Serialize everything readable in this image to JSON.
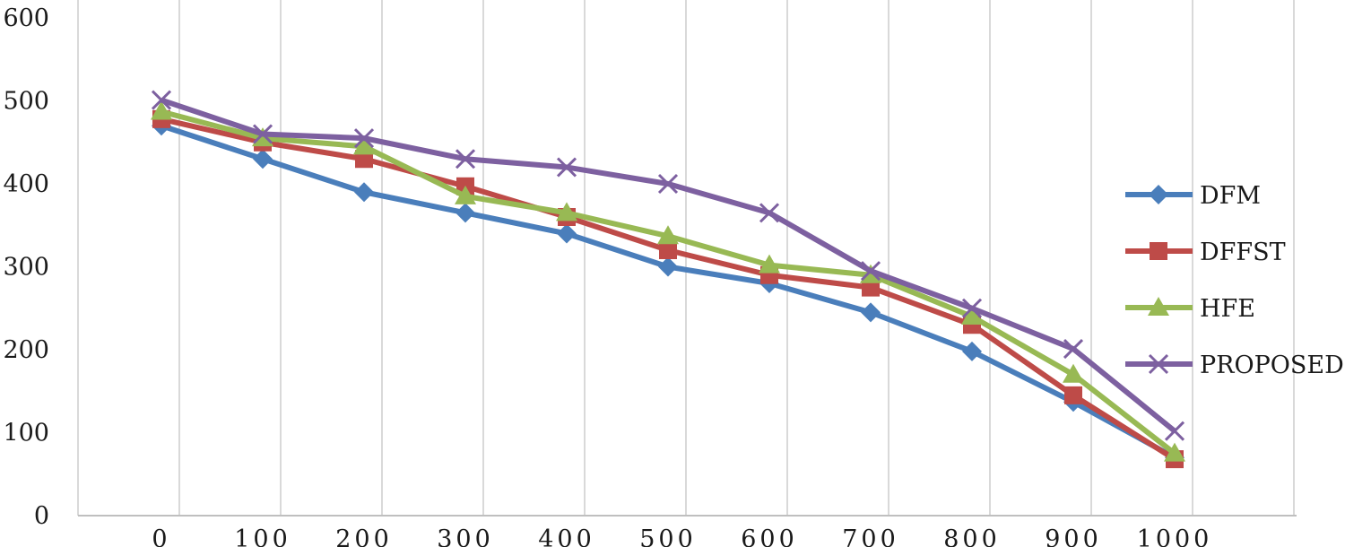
{
  "chart_data": {
    "type": "line",
    "title": "",
    "xlabel": "",
    "ylabel": "",
    "categories": [
      "0",
      "100",
      "200",
      "300",
      "400",
      "500",
      "600",
      "700",
      "800",
      "900",
      "1000"
    ],
    "ylim": [
      0,
      600
    ],
    "yticks": [
      "0",
      "100",
      "200",
      "300",
      "400",
      "500",
      "600"
    ],
    "grid": "vertical",
    "legend_position": "right",
    "series": [
      {
        "name": "DFM",
        "color": "#4a7ebb",
        "marker": "diamond",
        "values": [
          470,
          430,
          390,
          365,
          340,
          300,
          280,
          245,
          198,
          137,
          70
        ]
      },
      {
        "name": "DFFST",
        "color": "#be4b48",
        "marker": "square",
        "values": [
          478,
          450,
          430,
          397,
          360,
          320,
          290,
          275,
          230,
          145,
          68
        ]
      },
      {
        "name": "HFE",
        "color": "#98b954",
        "marker": "triangle",
        "values": [
          487,
          455,
          445,
          385,
          365,
          337,
          302,
          290,
          240,
          170,
          75
        ]
      },
      {
        "name": "PROPOSED",
        "color": "#7d60a0",
        "marker": "x",
        "values": [
          501,
          460,
          455,
          430,
          420,
          400,
          365,
          295,
          250,
          201,
          102
        ]
      }
    ]
  }
}
